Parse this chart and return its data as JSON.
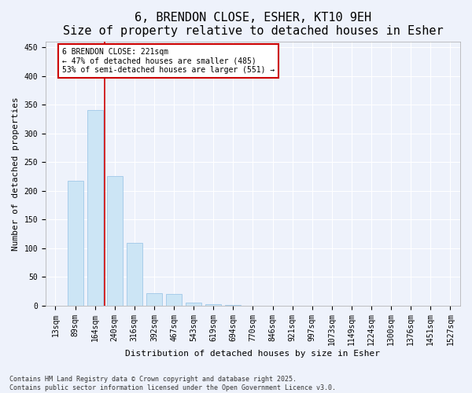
{
  "title": "6, BRENDON CLOSE, ESHER, KT10 9EH",
  "subtitle": "Size of property relative to detached houses in Esher",
  "xlabel": "Distribution of detached houses by size in Esher",
  "ylabel": "Number of detached properties",
  "categories": [
    "13sqm",
    "89sqm",
    "164sqm",
    "240sqm",
    "316sqm",
    "392sqm",
    "467sqm",
    "543sqm",
    "619sqm",
    "694sqm",
    "770sqm",
    "846sqm",
    "921sqm",
    "997sqm",
    "1073sqm",
    "1149sqm",
    "1224sqm",
    "1300sqm",
    "1376sqm",
    "1451sqm",
    "1527sqm"
  ],
  "values": [
    0,
    217,
    340,
    225,
    109,
    22,
    20,
    5,
    2,
    1,
    0,
    0,
    0,
    0,
    0,
    0,
    0,
    0,
    0,
    0,
    0
  ],
  "bar_color": "#cce5f5",
  "bar_edge_color": "#a0c8e8",
  "ylim": [
    0,
    460
  ],
  "yticks": [
    0,
    50,
    100,
    150,
    200,
    250,
    300,
    350,
    400,
    450
  ],
  "marker_line_color": "#cc0000",
  "annotation_text": "6 BRENDON CLOSE: 221sqm\n← 47% of detached houses are smaller (485)\n53% of semi-detached houses are larger (551) →",
  "annotation_box_color": "#ffffff",
  "annotation_box_edge_color": "#cc0000",
  "footnote": "Contains HM Land Registry data © Crown copyright and database right 2025.\nContains public sector information licensed under the Open Government Licence v3.0.",
  "background_color": "#eef2fb",
  "grid_color": "#ffffff",
  "title_fontsize": 11,
  "subtitle_fontsize": 10,
  "axis_label_fontsize": 8,
  "tick_fontsize": 7,
  "footnote_fontsize": 6
}
